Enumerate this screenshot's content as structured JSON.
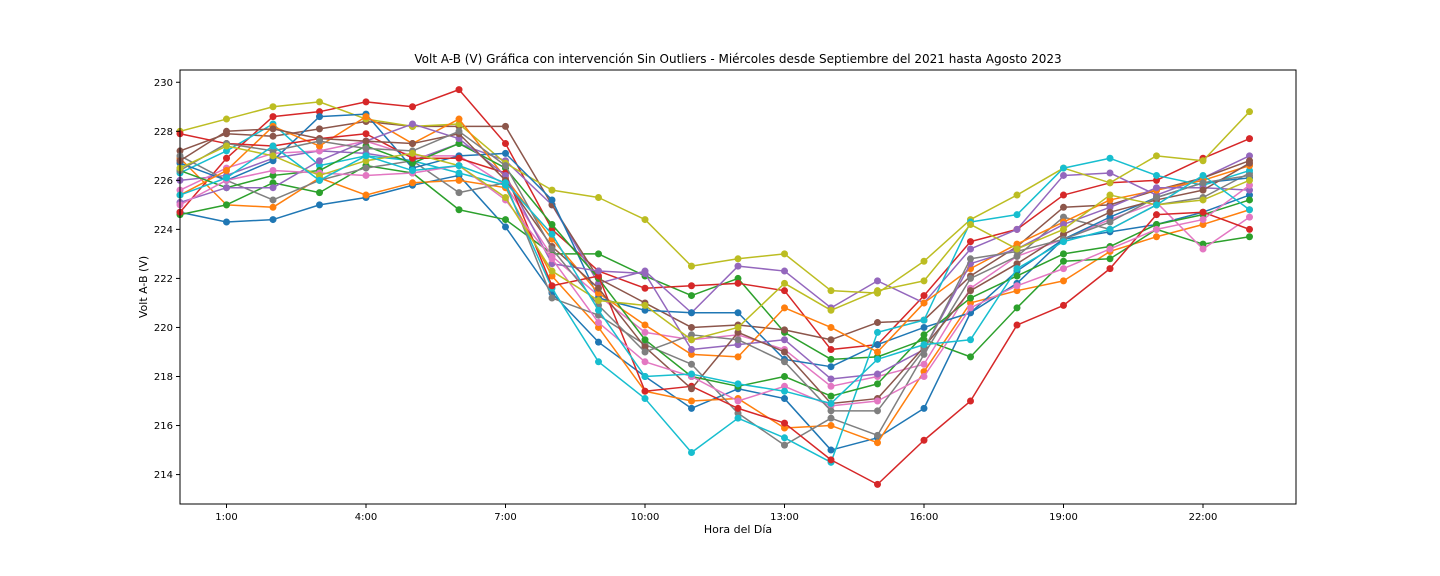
{
  "chart_data": {
    "type": "line",
    "title": "Volt A-B (V) Gráfica con intervención Sin Outliers - Miércoles desde Septiembre del 2021 hasta Agosto 2023",
    "xlabel": "Hora del Día",
    "ylabel": "Volt A-B (V)",
    "xlim": [
      0,
      24
    ],
    "ylim": [
      212.8,
      230.5
    ],
    "x_ticks": [
      {
        "x": 1,
        "label": "1:00"
      },
      {
        "x": 4,
        "label": "4:00"
      },
      {
        "x": 7,
        "label": "7:00"
      },
      {
        "x": 10,
        "label": "10:00"
      },
      {
        "x": 13,
        "label": "13:00"
      },
      {
        "x": 16,
        "label": "16:00"
      },
      {
        "x": 19,
        "label": "19:00"
      },
      {
        "x": 22,
        "label": "22:00"
      }
    ],
    "y_ticks": [
      214,
      216,
      218,
      220,
      222,
      224,
      226,
      228,
      230
    ],
    "grid": false,
    "legend": "none",
    "marker": "circle",
    "x": [
      0,
      1,
      2,
      3,
      4,
      5,
      6,
      7,
      8,
      9,
      10,
      11,
      12,
      13,
      14,
      15,
      16,
      17,
      18,
      19,
      20,
      21,
      22,
      23
    ],
    "series": [
      {
        "color": "#1f77b4",
        "values": [
          224.7,
          224.3,
          224.4,
          225.0,
          225.3,
          225.8,
          226.2,
          224.1,
          221.4,
          219.4,
          218.0,
          216.7,
          217.5,
          217.1,
          215.0,
          215.5,
          216.7,
          220.6,
          221.8,
          223.6,
          223.9,
          224.2,
          224.7,
          225.4
        ]
      },
      {
        "color": "#ff7f0e",
        "values": [
          226.9,
          225.0,
          224.9,
          226.1,
          225.4,
          225.9,
          226.0,
          225.7,
          222.1,
          220.0,
          217.4,
          217.0,
          217.1,
          215.9,
          216.0,
          215.3,
          218.2,
          221.0,
          221.5,
          221.9,
          223.1,
          223.7,
          224.2,
          224.8
        ]
      },
      {
        "color": "#2ca02c",
        "values": [
          224.6,
          225.0,
          225.9,
          225.5,
          226.6,
          226.3,
          224.8,
          224.4,
          223.0,
          223.0,
          222.1,
          221.3,
          222.0,
          219.8,
          218.7,
          218.8,
          219.5,
          218.8,
          220.8,
          222.7,
          222.8,
          224.0,
          223.4,
          223.7
        ]
      },
      {
        "color": "#d62728",
        "values": [
          224.7,
          226.9,
          228.6,
          228.8,
          229.2,
          229.0,
          229.7,
          227.5,
          224.0,
          222.3,
          221.6,
          221.7,
          221.8,
          221.5,
          219.1,
          219.3,
          221.3,
          223.5,
          224.0,
          225.4,
          225.9,
          226.0,
          226.9,
          227.7
        ]
      },
      {
        "color": "#9467bd",
        "values": [
          226.0,
          226.2,
          226.9,
          227.2,
          227.1,
          226.8,
          227.5,
          226.8,
          225.0,
          221.8,
          222.3,
          220.6,
          222.5,
          222.3,
          220.8,
          221.9,
          221.0,
          223.2,
          224.0,
          226.2,
          226.3,
          225.4,
          226.1,
          227.0
        ]
      },
      {
        "color": "#8c564b",
        "values": [
          227.2,
          227.9,
          227.8,
          228.1,
          228.4,
          228.2,
          228.2,
          228.2,
          225.0,
          222.0,
          221.0,
          220.0,
          220.1,
          219.9,
          219.5,
          220.2,
          220.3,
          222.1,
          223.3,
          224.9,
          225.0,
          225.6,
          226.1,
          226.8
        ]
      },
      {
        "color": "#e377c2",
        "values": [
          225.6,
          226.5,
          227.1,
          227.2,
          227.6,
          227.0,
          227.0,
          225.8,
          222.9,
          221.3,
          219.8,
          219.5,
          219.7,
          219.1,
          217.6,
          218.0,
          218.5,
          221.6,
          222.9,
          223.6,
          224.4,
          225.1,
          223.2,
          224.5
        ]
      },
      {
        "color": "#7f7f7f",
        "values": [
          227.0,
          226.0,
          225.2,
          226.0,
          226.5,
          226.8,
          225.5,
          225.9,
          221.2,
          220.5,
          219.3,
          218.5,
          216.5,
          215.2,
          216.3,
          215.6,
          218.9,
          222.0,
          222.9,
          224.5,
          224.0,
          225.0,
          225.3,
          226.3
        ]
      },
      {
        "color": "#bcbd22",
        "values": [
          228.0,
          228.5,
          229.0,
          229.2,
          228.5,
          228.2,
          228.3,
          226.7,
          225.6,
          225.3,
          224.4,
          222.5,
          222.8,
          223.0,
          221.5,
          221.4,
          222.7,
          224.4,
          225.4,
          226.5,
          225.9,
          227.0,
          226.8,
          228.8
        ]
      },
      {
        "color": "#17becf",
        "values": [
          226.3,
          227.2,
          228.3,
          226.6,
          227.0,
          226.8,
          226.3,
          225.8,
          221.6,
          218.6,
          217.1,
          214.9,
          216.3,
          215.5,
          214.5,
          219.8,
          220.3,
          224.3,
          224.6,
          226.5,
          226.9,
          226.2,
          225.8,
          226.4
        ]
      },
      {
        "color": "#1f77b4",
        "values": [
          226.7,
          226.0,
          226.8,
          228.6,
          228.7,
          226.5,
          227.0,
          227.1,
          225.2,
          221.2,
          220.7,
          220.6,
          220.6,
          218.7,
          218.4,
          219.3,
          220.0,
          220.6,
          222.3,
          223.6,
          224.5,
          225.3,
          225.9,
          226.1
        ]
      },
      {
        "color": "#ff7f0e",
        "values": [
          225.4,
          226.4,
          228.2,
          227.4,
          228.6,
          227.5,
          228.5,
          226.1,
          223.6,
          221.4,
          220.1,
          218.9,
          218.8,
          220.8,
          220.0,
          219.0,
          221.0,
          222.4,
          223.4,
          224.3,
          225.2,
          225.6,
          226.0,
          226.6
        ]
      },
      {
        "color": "#2ca02c",
        "values": [
          226.4,
          225.7,
          226.2,
          226.4,
          227.4,
          226.7,
          227.5,
          226.5,
          224.2,
          222.0,
          219.5,
          218.0,
          217.6,
          218.0,
          217.2,
          217.7,
          219.7,
          221.2,
          222.1,
          223.0,
          223.3,
          224.2,
          224.6,
          225.2
        ]
      },
      {
        "color": "#d62728",
        "values": [
          227.9,
          227.5,
          227.4,
          227.7,
          227.9,
          226.9,
          226.9,
          226.3,
          221.7,
          222.1,
          217.4,
          217.6,
          216.7,
          216.1,
          214.6,
          213.6,
          215.4,
          217.0,
          220.1,
          220.9,
          222.4,
          224.6,
          224.7,
          224.0
        ]
      },
      {
        "color": "#9467bd",
        "values": [
          225.1,
          225.7,
          225.7,
          226.8,
          227.6,
          228.3,
          227.7,
          226.2,
          222.6,
          222.3,
          222.2,
          219.1,
          219.3,
          219.5,
          217.9,
          218.1,
          219.1,
          222.6,
          223.2,
          224.2,
          224.9,
          225.7,
          225.7,
          225.6
        ]
      },
      {
        "color": "#8c564b",
        "values": [
          226.8,
          228.0,
          228.1,
          227.7,
          227.6,
          227.5,
          227.9,
          226.0,
          223.3,
          221.6,
          219.2,
          217.5,
          219.8,
          219.0,
          216.9,
          217.1,
          219.2,
          221.5,
          222.6,
          223.8,
          224.7,
          225.2,
          225.6,
          226.7
        ]
      },
      {
        "color": "#e377c2",
        "values": [
          225.0,
          226.0,
          226.4,
          226.3,
          226.2,
          226.3,
          226.6,
          225.2,
          222.8,
          220.2,
          218.6,
          218.0,
          217.0,
          217.6,
          216.8,
          217.0,
          218.0,
          220.8,
          221.7,
          222.4,
          223.2,
          224.0,
          224.4,
          225.8
        ]
      },
      {
        "color": "#7f7f7f",
        "values": [
          226.4,
          227.5,
          227.2,
          227.6,
          227.3,
          227.2,
          228.0,
          226.6,
          223.2,
          220.9,
          219.0,
          219.7,
          219.5,
          218.6,
          216.6,
          216.6,
          219.1,
          222.8,
          223.1,
          223.6,
          224.3,
          225.3,
          225.9,
          226.2
        ]
      },
      {
        "color": "#bcbd22",
        "values": [
          226.5,
          227.4,
          227.0,
          226.2,
          226.8,
          227.1,
          226.6,
          225.3,
          222.3,
          221.1,
          220.9,
          219.5,
          220.0,
          221.8,
          220.7,
          221.5,
          221.9,
          224.2,
          223.2,
          224.0,
          225.4,
          225.0,
          225.2,
          226.0
        ]
      },
      {
        "color": "#17becf",
        "values": [
          225.4,
          226.1,
          227.4,
          226.0,
          227.0,
          226.4,
          226.6,
          225.9,
          223.8,
          220.7,
          218.0,
          218.1,
          217.7,
          217.4,
          216.9,
          218.7,
          219.3,
          219.5,
          222.4,
          223.5,
          224.0,
          225.0,
          226.2,
          224.8
        ]
      }
    ]
  }
}
